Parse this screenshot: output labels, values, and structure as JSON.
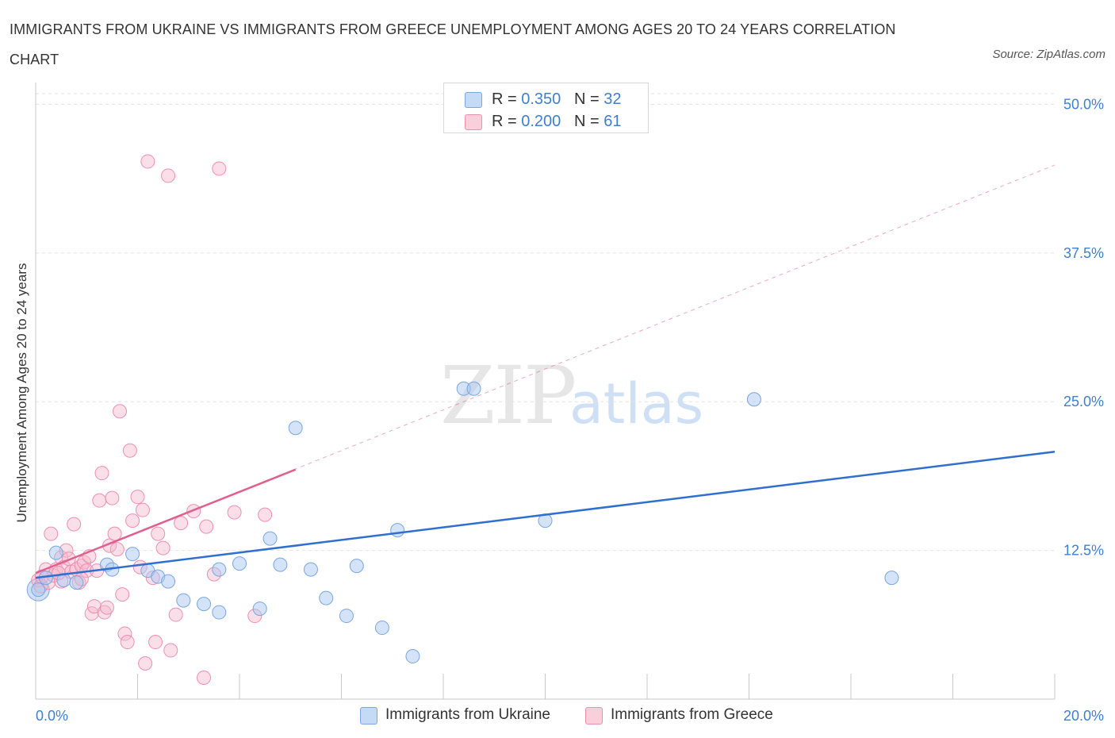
{
  "chart": {
    "title": "IMMIGRANTS FROM UKRAINE VS IMMIGRANTS FROM GREECE UNEMPLOYMENT AMONG AGES 20 TO 24 YEARS CORRELATION CHART",
    "source": "Source: ZipAtlas.com",
    "ylabel": "Unemployment Among Ages 20 to 24 years",
    "watermark_zip": "ZIP",
    "watermark_atlas": "atlas",
    "legend": [
      {
        "r_label": "R =",
        "r_value": "0.350",
        "n_label": "N =",
        "n_value": "32",
        "color": "#a9c8f0"
      },
      {
        "r_label": "R =",
        "r_value": "0.200",
        "n_label": "N =",
        "n_value": "61",
        "color": "#f5b8cc"
      }
    ],
    "series_labels": [
      "Immigrants from Ukraine",
      "Immigrants from Greece"
    ],
    "colors": {
      "ukraine_fill": "#a9c8f0",
      "ukraine_stroke": "#7aa7e0",
      "ukraine_line": "#2f6fd0",
      "greece_fill": "#f5b8cc",
      "greece_stroke": "#ee8fb0",
      "greece_line": "#e0608d",
      "tick_text": "#3f7fd0",
      "grid": "#e3e3e3"
    }
  },
  "chart_data": {
    "type": "scatter",
    "title": "IMMIGRANTS FROM UKRAINE VS IMMIGRANTS FROM GREECE UNEMPLOYMENT AMONG AGES 20 TO 24 YEARS CORRELATION CHART",
    "xlabel": "",
    "ylabel": "Unemployment Among Ages 20 to 24 years",
    "xlim": [
      0,
      20
    ],
    "ylim": [
      0,
      50
    ],
    "x_tick_labels": [
      "0.0%",
      "20.0%"
    ],
    "y_ticks": [
      12.5,
      25,
      37.5,
      50
    ],
    "y_tick_labels": [
      "12.5%",
      "25.0%",
      "37.5%",
      "50.0%"
    ],
    "grid": true,
    "legend_placement": "top-center",
    "series": [
      {
        "name": "Immigrants from Ukraine",
        "r": 0.35,
        "n": 32,
        "trend": {
          "x": [
            0,
            20
          ],
          "y": [
            10.2,
            20.8
          ]
        },
        "points": [
          [
            0.05,
            9.2
          ],
          [
            0.2,
            10.2
          ],
          [
            0.4,
            12.3
          ],
          [
            0.55,
            10.0
          ],
          [
            0.8,
            9.8
          ],
          [
            1.4,
            11.3
          ],
          [
            1.5,
            10.9
          ],
          [
            1.9,
            12.2
          ],
          [
            2.2,
            10.8
          ],
          [
            2.4,
            10.3
          ],
          [
            2.6,
            9.9
          ],
          [
            2.9,
            8.3
          ],
          [
            3.3,
            8.0
          ],
          [
            3.6,
            10.9
          ],
          [
            3.6,
            7.3
          ],
          [
            4.0,
            11.4
          ],
          [
            4.4,
            7.6
          ],
          [
            4.6,
            13.5
          ],
          [
            4.8,
            11.3
          ],
          [
            5.1,
            22.8
          ],
          [
            5.4,
            10.9
          ],
          [
            5.7,
            8.5
          ],
          [
            6.1,
            7.0
          ],
          [
            6.3,
            11.2
          ],
          [
            6.8,
            6.0
          ],
          [
            7.1,
            14.2
          ],
          [
            7.4,
            3.6
          ],
          [
            8.4,
            26.1
          ],
          [
            8.6,
            26.1
          ],
          [
            10.0,
            15.0
          ],
          [
            14.1,
            25.2
          ],
          [
            16.8,
            10.2
          ]
        ]
      },
      {
        "name": "Immigrants from Greece",
        "r": 0.2,
        "n": 61,
        "trend": {
          "x": [
            0,
            5.1
          ],
          "y": [
            10.6,
            19.3
          ]
        },
        "trend_extended": {
          "x": [
            0,
            20
          ],
          "y": [
            10.6,
            44.9
          ]
        },
        "points": [
          [
            0.05,
            10.0
          ],
          [
            0.1,
            9.5
          ],
          [
            0.2,
            10.9
          ],
          [
            0.25,
            9.8
          ],
          [
            0.3,
            13.9
          ],
          [
            0.35,
            10.4
          ],
          [
            0.4,
            10.9
          ],
          [
            0.5,
            11.9
          ],
          [
            0.5,
            9.9
          ],
          [
            0.55,
            11.1
          ],
          [
            0.6,
            12.5
          ],
          [
            0.65,
            11.8
          ],
          [
            0.7,
            10.7
          ],
          [
            0.75,
            14.7
          ],
          [
            0.8,
            10.9
          ],
          [
            0.85,
            9.8
          ],
          [
            0.9,
            11.2
          ],
          [
            0.95,
            11.5
          ],
          [
            1.0,
            10.8
          ],
          [
            1.05,
            12.0
          ],
          [
            1.1,
            7.2
          ],
          [
            1.15,
            7.8
          ],
          [
            1.2,
            10.8
          ],
          [
            1.25,
            16.7
          ],
          [
            1.3,
            19.0
          ],
          [
            1.35,
            7.3
          ],
          [
            1.4,
            7.7
          ],
          [
            1.45,
            12.9
          ],
          [
            1.5,
            16.9
          ],
          [
            1.55,
            13.9
          ],
          [
            1.6,
            12.6
          ],
          [
            1.65,
            24.2
          ],
          [
            1.7,
            8.8
          ],
          [
            1.75,
            5.5
          ],
          [
            1.8,
            4.8
          ],
          [
            1.85,
            20.9
          ],
          [
            1.9,
            15.0
          ],
          [
            2.0,
            17.0
          ],
          [
            2.05,
            11.1
          ],
          [
            2.1,
            15.9
          ],
          [
            2.15,
            3.0
          ],
          [
            2.2,
            45.2
          ],
          [
            2.3,
            10.2
          ],
          [
            2.35,
            4.8
          ],
          [
            2.4,
            13.9
          ],
          [
            2.5,
            12.7
          ],
          [
            2.6,
            44.0
          ],
          [
            2.65,
            4.1
          ],
          [
            2.75,
            7.1
          ],
          [
            2.85,
            14.8
          ],
          [
            3.1,
            15.8
          ],
          [
            3.3,
            1.8
          ],
          [
            3.35,
            14.5
          ],
          [
            3.5,
            10.5
          ],
          [
            3.6,
            44.6
          ],
          [
            3.9,
            15.7
          ],
          [
            4.3,
            7.0
          ],
          [
            4.5,
            15.5
          ],
          [
            0.12,
            10.3
          ],
          [
            0.45,
            10.6
          ],
          [
            0.9,
            10.1
          ]
        ]
      }
    ]
  }
}
